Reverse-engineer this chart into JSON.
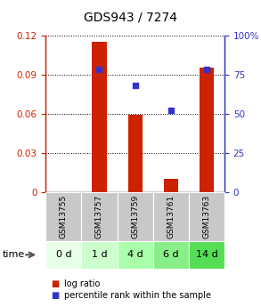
{
  "title": "GDS943 / 7274",
  "samples": [
    "GSM13755",
    "GSM13757",
    "GSM13759",
    "GSM13761",
    "GSM13763"
  ],
  "time_labels": [
    "0 d",
    "1 d",
    "4 d",
    "6 d",
    "14 d"
  ],
  "log_ratio": [
    0.0,
    0.115,
    0.059,
    0.01,
    0.095
  ],
  "percentile_rank": [
    null,
    78,
    68,
    52,
    78
  ],
  "ylim_left": [
    0,
    0.12
  ],
  "ylim_right": [
    0,
    100
  ],
  "yticks_left": [
    0,
    0.03,
    0.06,
    0.09,
    0.12
  ],
  "yticks_right": [
    0,
    25,
    50,
    75,
    100
  ],
  "bar_color": "#cc2200",
  "dot_color": "#3333cc",
  "bar_width": 0.4,
  "sample_box_color": "#c8c8c8",
  "time_colors": [
    "#e8ffe8",
    "#ccffcc",
    "#aaffaa",
    "#88ee88",
    "#55dd55"
  ],
  "title_fontsize": 10,
  "tick_fontsize": 7.5,
  "sample_fontsize": 6.5,
  "time_fontsize": 8,
  "legend_fontsize": 7
}
